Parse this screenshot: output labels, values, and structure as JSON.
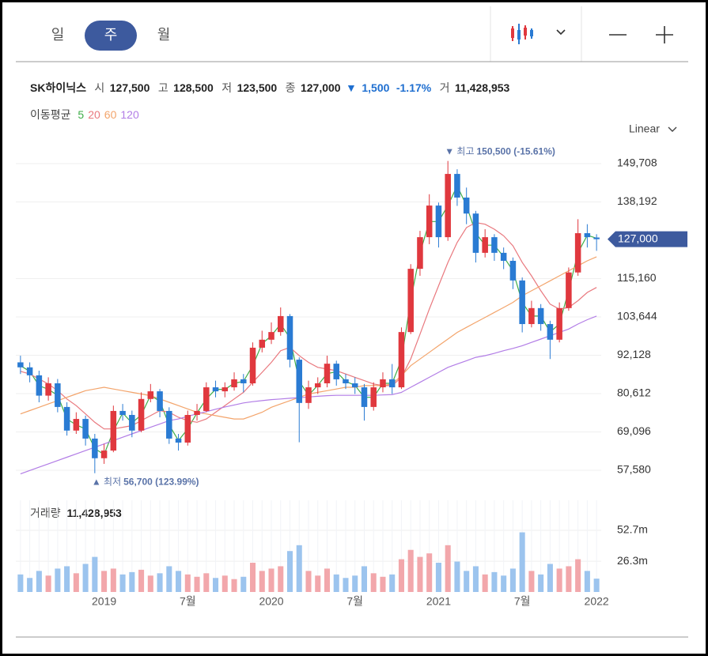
{
  "tabs": [
    "일",
    "주",
    "월"
  ],
  "scale_menu": "Linear",
  "header": {
    "name": "SK하이닉스",
    "open_label": "시",
    "open": "127,500",
    "high_label": "고",
    "high": "128,500",
    "low_label": "저",
    "low": "123,500",
    "close_label": "종",
    "close": "127,000",
    "change_sign": "▼",
    "change": "1,500",
    "change_pct": "-1.17%",
    "volume_label": "거",
    "volume": "11,428,953"
  },
  "chart_data": [
    {
      "type": "candlestick",
      "ma_label": "이동평균",
      "up_color": "#e0383e",
      "down_color": "#2a7bd3",
      "categories": [
        null,
        null,
        null,
        null,
        null,
        null,
        null,
        null,
        null,
        "2019",
        null,
        null,
        null,
        null,
        null,
        null,
        null,
        null,
        "7월",
        null,
        null,
        null,
        null,
        null,
        null,
        null,
        null,
        "2020",
        null,
        null,
        null,
        null,
        null,
        null,
        null,
        null,
        "7월",
        null,
        null,
        null,
        null,
        null,
        null,
        null,
        null,
        "2021",
        null,
        null,
        null,
        null,
        null,
        null,
        null,
        null,
        "7월",
        null,
        null,
        null,
        null,
        null,
        null,
        null,
        "2022"
      ],
      "open": [
        90000,
        88500,
        86100,
        80000,
        83700,
        76600,
        69500,
        73000,
        67100,
        61200,
        63500,
        75400,
        74200,
        69500,
        79000,
        81300,
        75400,
        67100,
        65900,
        74200,
        75400,
        82500,
        81300,
        82500,
        84900,
        83700,
        94400,
        96800,
        99100,
        103900,
        90800,
        77800,
        82500,
        83700,
        89600,
        84900,
        83700,
        82500,
        76600,
        82500,
        84900,
        82500,
        99100,
        118100,
        127600,
        137100,
        127600,
        146600,
        139500,
        134700,
        122900,
        127600,
        122900,
        120500,
        114600,
        101500,
        106300,
        101500,
        96800,
        106300,
        117000,
        128800,
        127500
      ],
      "high": [
        92000,
        90000,
        87500,
        85500,
        85000,
        78000,
        75000,
        74000,
        68500,
        65500,
        77000,
        77500,
        75500,
        81000,
        83500,
        82000,
        76500,
        68500,
        75500,
        77500,
        84000,
        84500,
        84000,
        87000,
        86500,
        96000,
        99500,
        102000,
        106500,
        104500,
        91500,
        84500,
        85500,
        92000,
        90500,
        86500,
        85500,
        83500,
        84000,
        87000,
        89500,
        100500,
        119500,
        129500,
        140500,
        138000,
        150500,
        148000,
        142500,
        135500,
        130000,
        128500,
        124500,
        121500,
        115500,
        108500,
        107500,
        102500,
        108000,
        118500,
        133000,
        131500,
        128500
      ],
      "low": [
        86500,
        84000,
        78000,
        78500,
        75000,
        68000,
        68500,
        65000,
        56700,
        59500,
        63000,
        72500,
        67500,
        69000,
        78000,
        73500,
        65500,
        63500,
        65000,
        72500,
        75000,
        79500,
        79500,
        81500,
        81000,
        83000,
        93000,
        95500,
        98000,
        88500,
        66000,
        76000,
        80500,
        82500,
        83000,
        82000,
        80500,
        72500,
        75500,
        81000,
        80500,
        82000,
        98500,
        116000,
        125500,
        124500,
        126500,
        137000,
        131500,
        120000,
        121500,
        120500,
        118000,
        112000,
        99000,
        100500,
        99500,
        91000,
        96000,
        105500,
        116000,
        124500,
        123500
      ],
      "close": [
        88500,
        86100,
        80000,
        83700,
        76600,
        69500,
        73000,
        67100,
        61200,
        63500,
        75400,
        74200,
        69500,
        79000,
        81300,
        75400,
        67100,
        65900,
        74200,
        75400,
        82500,
        81300,
        82500,
        84900,
        83700,
        94400,
        96800,
        99100,
        103900,
        90800,
        77800,
        82500,
        83700,
        89600,
        84900,
        83700,
        82500,
        76600,
        82500,
        84900,
        82500,
        99100,
        118100,
        127600,
        137100,
        127600,
        146600,
        139500,
        134700,
        122900,
        127600,
        122900,
        120500,
        114600,
        101500,
        106300,
        101500,
        96800,
        106300,
        117000,
        128800,
        127600,
        127000
      ],
      "series": [
        {
          "name": "5",
          "color": "#3fae49",
          "values": [
            89000,
            87300,
            83000,
            81900,
            80100,
            73000,
            71200,
            70000,
            64100,
            62300,
            69400,
            74800,
            71800,
            74200,
            80100,
            78300,
            71200,
            66500,
            70000,
            74800,
            79000,
            81900,
            81900,
            83700,
            84300,
            89000,
            95600,
            98000,
            101500,
            97300,
            84300,
            80100,
            83100,
            86600,
            87200,
            84300,
            83100,
            79500,
            79500,
            83700,
            83700,
            90800,
            108600,
            122900,
            132300,
            132300,
            137100,
            143000,
            137100,
            128800,
            125200,
            125200,
            121700,
            117500,
            108000,
            103900,
            103900,
            99100,
            101500,
            111600,
            122900,
            128200,
            127300
          ]
        },
        {
          "name": "20",
          "color": "#e9787e",
          "values": [
            87300,
            86500,
            85000,
            83500,
            81500,
            79000,
            77000,
            74500,
            72000,
            70000,
            70000,
            70500,
            71000,
            72500,
            74000,
            75500,
            75000,
            73500,
            72500,
            72000,
            73000,
            75000,
            77000,
            79000,
            81000,
            84000,
            87000,
            90000,
            93500,
            94500,
            92000,
            90000,
            88500,
            88000,
            87500,
            86500,
            85500,
            84500,
            83500,
            83000,
            83000,
            85500,
            91000,
            98500,
            106000,
            113000,
            120000,
            126000,
            130500,
            132000,
            131500,
            130000,
            128000,
            125000,
            120000,
            116000,
            111500,
            107500,
            106000,
            106500,
            108500,
            111000,
            112500
          ]
        },
        {
          "name": "60",
          "color": "#f3a46b",
          "values": [
            74500,
            75500,
            76500,
            77500,
            78500,
            79500,
            80500,
            81500,
            82000,
            82500,
            82000,
            81500,
            81000,
            80500,
            80000,
            79000,
            78000,
            77000,
            76000,
            75000,
            74500,
            74000,
            73500,
            73000,
            73000,
            74000,
            75000,
            76500,
            77500,
            78500,
            79500,
            80500,
            81000,
            81500,
            82000,
            82500,
            82500,
            83000,
            83000,
            83000,
            83500,
            86000,
            89000,
            91000,
            93000,
            95000,
            97000,
            99000,
            100500,
            102000,
            103500,
            105000,
            106500,
            108000,
            110000,
            111500,
            113000,
            114500,
            116000,
            117500,
            119000,
            120500,
            121700
          ]
        },
        {
          "name": "120",
          "color": "#b27de6",
          "values": [
            56500,
            57500,
            58500,
            59500,
            60500,
            61500,
            62500,
            63500,
            64500,
            65500,
            66500,
            67500,
            68500,
            69500,
            70500,
            71500,
            72500,
            73000,
            73800,
            74500,
            75200,
            75900,
            76600,
            77200,
            77800,
            78200,
            78500,
            78800,
            79000,
            79200,
            79400,
            79600,
            79800,
            80000,
            80100,
            80100,
            80100,
            80100,
            80100,
            80200,
            80300,
            81000,
            82500,
            84000,
            85500,
            87000,
            88500,
            89500,
            90500,
            91500,
            92000,
            92700,
            93500,
            94200,
            95000,
            96000,
            97000,
            98000,
            99000,
            100000,
            101500,
            102800,
            103900
          ]
        }
      ],
      "ylim": [
        50460,
        155400
      ],
      "yticks": [
        {
          "value": 57580,
          "label": "57,580"
        },
        {
          "value": 69096,
          "label": "69,096"
        },
        {
          "value": 80612,
          "label": "80,612"
        },
        {
          "value": 92128,
          "label": "92,128"
        },
        {
          "value": 103644,
          "label": "103,644"
        },
        {
          "value": 115160,
          "label": "115,160"
        },
        {
          "value": 138192,
          "label": "138,192"
        },
        {
          "value": 149708,
          "label": "149,708"
        }
      ],
      "grid": true,
      "annotations": [
        {
          "label": "▼ 최고",
          "value": 150500,
          "value_label": "150,500 (-15.61%)"
        },
        {
          "label": "▲ 최저",
          "value": 56700,
          "value_label": "56,700 (123.99%)"
        }
      ],
      "price_tag": {
        "value": 127000,
        "label": "127,000"
      }
    },
    {
      "type": "bar",
      "label": "거래량",
      "current": "11,428,953",
      "up_color": "#f2a7ab",
      "down_color": "#9cc4ee",
      "values": [
        15,
        12,
        18,
        14,
        20,
        22,
        16,
        24,
        30,
        18,
        20,
        15,
        17,
        19,
        14,
        16,
        22,
        18,
        15,
        13,
        16,
        12,
        14,
        11,
        13,
        25,
        18,
        20,
        22,
        35,
        40,
        18,
        14,
        20,
        15,
        12,
        14,
        22,
        16,
        13,
        15,
        28,
        36,
        30,
        33,
        25,
        40,
        26,
        18,
        22,
        15,
        17,
        14,
        20,
        51,
        18,
        15,
        24,
        20,
        22,
        28,
        18,
        11.4
      ],
      "ylim": [
        0,
        78.4
      ],
      "yticks": [
        {
          "value": 26.3,
          "label": "26.3m"
        },
        {
          "value": 52.7,
          "label": "52.7m"
        }
      ],
      "grid": true
    }
  ]
}
